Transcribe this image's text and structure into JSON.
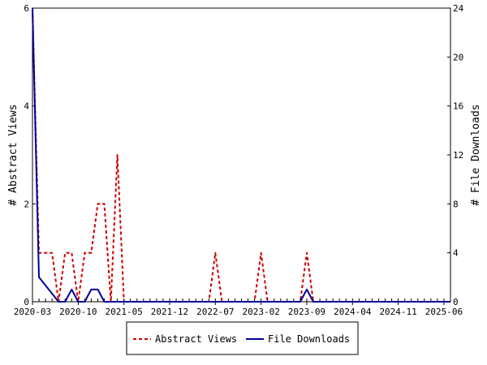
{
  "chart_data": {
    "type": "line",
    "title": "",
    "xlabel": "",
    "ylabel_left": "# Abstract Views",
    "ylabel_right": "# File Downloads",
    "ylim_left": [
      0,
      6
    ],
    "ylim_right": [
      0,
      24
    ],
    "x_range": [
      "2020-03",
      "2025-07"
    ],
    "x_tick_labels": [
      "2020-03",
      "2020-10",
      "2021-05",
      "2021-12",
      "2022-07",
      "2023-02",
      "2023-09",
      "2024-04",
      "2024-11",
      "2025-06"
    ],
    "y_left_ticks": [
      0,
      2,
      4,
      6
    ],
    "y_right_ticks": [
      0,
      4,
      8,
      12,
      16,
      20,
      24
    ],
    "grid": false,
    "legend_position": "bottom-center",
    "series": [
      {
        "name": "Abstract Views",
        "axis": "left",
        "color": "#cc0000",
        "style": "dashed",
        "x": [
          "2020-03",
          "2020-04",
          "2020-05",
          "2020-06",
          "2020-07",
          "2020-08",
          "2020-09",
          "2020-10",
          "2020-11",
          "2020-12",
          "2021-01",
          "2021-02",
          "2021-03",
          "2021-04",
          "2021-05",
          "2021-06",
          "2022-05",
          "2022-06",
          "2022-07",
          "2022-08",
          "2023-01",
          "2023-02",
          "2023-03",
          "2023-08",
          "2023-09",
          "2023-10",
          "2025-07"
        ],
        "values": [
          6,
          1,
          1,
          1,
          0,
          1,
          1,
          0,
          1,
          1,
          2,
          2,
          0,
          3,
          0,
          0,
          0,
          0,
          1,
          0,
          0,
          1,
          0,
          0,
          1,
          0,
          0
        ]
      },
      {
        "name": "File Downloads",
        "axis": "right",
        "color": "#000099",
        "style": "solid",
        "x": [
          "2020-03",
          "2020-04",
          "2020-07",
          "2020-08",
          "2020-09",
          "2020-10",
          "2020-11",
          "2020-12",
          "2021-01",
          "2021-02",
          "2021-03",
          "2023-08",
          "2023-09",
          "2023-10",
          "2025-07"
        ],
        "values": [
          24,
          2,
          0,
          0,
          1,
          0,
          0,
          1,
          1,
          0,
          0,
          0,
          1,
          0,
          0
        ]
      }
    ]
  }
}
